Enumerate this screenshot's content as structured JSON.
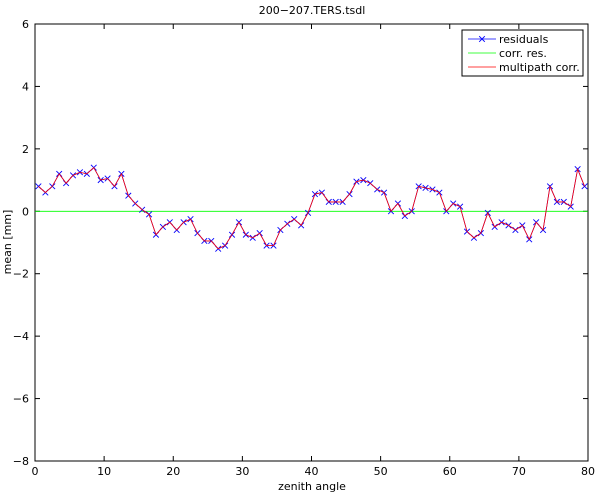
{
  "chart_data": {
    "type": "line",
    "title": "200−207.TERS.tsdl",
    "xlabel": "zenith angle",
    "ylabel": "mean  [mm]",
    "xlim": [
      0,
      80
    ],
    "ylim": [
      -8,
      6
    ],
    "xticks": [
      0,
      10,
      20,
      30,
      40,
      50,
      60,
      70,
      80
    ],
    "yticks": [
      -8,
      -6,
      -4,
      -2,
      0,
      2,
      4,
      6
    ],
    "xtick_labels": [
      "0",
      "10",
      "20",
      "30",
      "40",
      "50",
      "60",
      "70",
      "80"
    ],
    "ytick_labels": [
      "−8",
      "−6",
      "−4",
      "−2",
      "0",
      "2",
      "4",
      "6"
    ],
    "grid": false,
    "legend_position": "top-right",
    "x": [
      0.5,
      1.5,
      2.5,
      3.5,
      4.5,
      5.5,
      6.5,
      7.5,
      8.5,
      9.5,
      10.5,
      11.5,
      12.5,
      13.5,
      14.5,
      15.5,
      16.5,
      17.5,
      18.5,
      19.5,
      20.5,
      21.5,
      22.5,
      23.5,
      24.5,
      25.5,
      26.5,
      27.5,
      28.5,
      29.5,
      30.5,
      31.5,
      32.5,
      33.5,
      34.5,
      35.5,
      36.5,
      37.5,
      38.5,
      39.5,
      40.5,
      41.5,
      42.5,
      43.5,
      44.5,
      45.5,
      46.5,
      47.5,
      48.5,
      49.5,
      50.5,
      51.5,
      52.5,
      53.5,
      54.5,
      55.5,
      56.5,
      57.5,
      58.5,
      59.5,
      60.5,
      61.5,
      62.5,
      63.5,
      64.5,
      65.5,
      66.5,
      67.5,
      68.5,
      69.5,
      70.5,
      71.5,
      72.5,
      73.5,
      74.5,
      75.5,
      76.5,
      77.5,
      78.5,
      79.5
    ],
    "series": [
      {
        "name": "residuals",
        "color": "#0000ff",
        "marker": "x",
        "values": [
          0.8,
          0.6,
          0.8,
          1.2,
          0.9,
          1.15,
          1.25,
          1.2,
          1.4,
          1.0,
          1.05,
          0.8,
          1.2,
          0.5,
          0.25,
          0.05,
          -0.1,
          -0.75,
          -0.5,
          -0.35,
          -0.6,
          -0.35,
          -0.25,
          -0.7,
          -0.95,
          -0.95,
          -1.2,
          -1.1,
          -0.75,
          -0.35,
          -0.75,
          -0.85,
          -0.7,
          -1.1,
          -1.1,
          -0.6,
          -0.4,
          -0.25,
          -0.45,
          -0.05,
          0.55,
          0.6,
          0.3,
          0.3,
          0.3,
          0.55,
          0.95,
          1.0,
          0.9,
          0.7,
          0.6,
          0.0,
          0.25,
          -0.15,
          0.0,
          0.8,
          0.75,
          0.7,
          0.6,
          0.0,
          0.25,
          0.15,
          -0.65,
          -0.85,
          -0.7,
          -0.05,
          -0.5,
          -0.35,
          -0.45,
          -0.6,
          -0.45,
          -0.9,
          -0.35,
          -0.6,
          0.8,
          0.3,
          0.3,
          0.15,
          1.35,
          0.8
        ]
      },
      {
        "name": "corr. res.",
        "color": "#00ff00",
        "marker": "none",
        "values": [
          0,
          0,
          0,
          0,
          0,
          0,
          0,
          0,
          0,
          0,
          0,
          0,
          0,
          0,
          0,
          0,
          0,
          0,
          0,
          0,
          0,
          0,
          0,
          0,
          0,
          0,
          0,
          0,
          0,
          0,
          0,
          0,
          0,
          0,
          0,
          0,
          0,
          0,
          0,
          0,
          0,
          0,
          0,
          0,
          0,
          0,
          0,
          0,
          0,
          0,
          0,
          0,
          0,
          0,
          0,
          0,
          0,
          0,
          0,
          0,
          0,
          0,
          0,
          0,
          0,
          0,
          0,
          0,
          0,
          0,
          0,
          0,
          0,
          0,
          0,
          0,
          0,
          0,
          0,
          0
        ]
      },
      {
        "name": "multipath corr.",
        "color": "#ff0000",
        "marker": "none",
        "values": [
          0.8,
          0.6,
          0.8,
          1.2,
          0.9,
          1.15,
          1.25,
          1.2,
          1.4,
          1.0,
          1.05,
          0.8,
          1.2,
          0.5,
          0.25,
          0.05,
          -0.1,
          -0.75,
          -0.5,
          -0.35,
          -0.6,
          -0.35,
          -0.25,
          -0.7,
          -0.95,
          -0.95,
          -1.2,
          -1.1,
          -0.75,
          -0.35,
          -0.75,
          -0.85,
          -0.7,
          -1.1,
          -1.1,
          -0.6,
          -0.4,
          -0.25,
          -0.45,
          -0.05,
          0.55,
          0.6,
          0.3,
          0.3,
          0.3,
          0.55,
          0.95,
          1.0,
          0.9,
          0.7,
          0.6,
          0.0,
          0.25,
          -0.15,
          0.0,
          0.8,
          0.75,
          0.7,
          0.6,
          0.0,
          0.25,
          0.15,
          -0.65,
          -0.85,
          -0.7,
          -0.05,
          -0.5,
          -0.35,
          -0.45,
          -0.6,
          -0.45,
          -0.9,
          -0.35,
          -0.6,
          0.8,
          0.3,
          0.3,
          0.15,
          1.35,
          0.8
        ]
      }
    ]
  }
}
